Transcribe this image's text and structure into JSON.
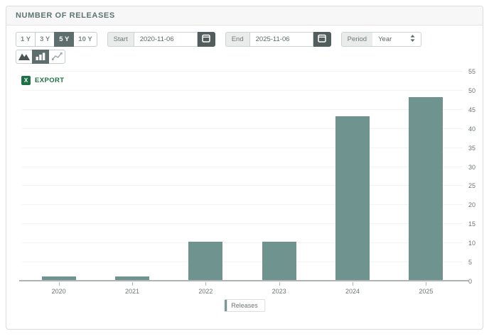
{
  "header": {
    "title": "NUMBER OF RELEASES"
  },
  "toolbar": {
    "range_buttons": [
      {
        "label": "1 Y",
        "selected": false
      },
      {
        "label": "3 Y",
        "selected": false
      },
      {
        "label": "5 Y",
        "selected": true
      },
      {
        "label": "10 Y",
        "selected": false
      }
    ],
    "start": {
      "label": "Start",
      "value": "2020-11-06",
      "icon": "calendar-icon"
    },
    "end": {
      "label": "End",
      "value": "2025-11-06",
      "icon": "calendar-icon"
    },
    "period": {
      "label": "Period",
      "value": "Year"
    },
    "chart_type_buttons": [
      {
        "name": "area",
        "icon": "area-chart-icon",
        "selected": false
      },
      {
        "name": "bar",
        "icon": "bar-chart-icon",
        "selected": true
      },
      {
        "name": "line",
        "icon": "line-chart-icon",
        "selected": false
      }
    ],
    "export_label": "EXPORT"
  },
  "legend": {
    "label": "Releases"
  },
  "colors": {
    "bar": "#6F938F",
    "selected_button_bg": "#5E6E6D",
    "calendar_button_bg": "#525E5D",
    "excel_green": "#1E7145",
    "title_text": "#5D7370",
    "gridline": "#F2F3F3",
    "axis_line": "#AEB4B3"
  },
  "chart_data": {
    "type": "bar",
    "title": "NUMBER OF RELEASES",
    "categories": [
      "2020",
      "2021",
      "2022",
      "2023",
      "2024",
      "2025"
    ],
    "series": [
      {
        "name": "Releases",
        "values": [
          1,
          1,
          10,
          10,
          43,
          48
        ]
      }
    ],
    "xlabel": "",
    "ylabel": "",
    "ylim": [
      0,
      55
    ],
    "yticks": [
      0,
      5,
      10,
      15,
      20,
      25,
      30,
      35,
      40,
      45,
      50,
      55
    ],
    "grid": true,
    "legend_position": "bottom",
    "y_axis_side": "right",
    "bar_color": "#6F938F"
  }
}
